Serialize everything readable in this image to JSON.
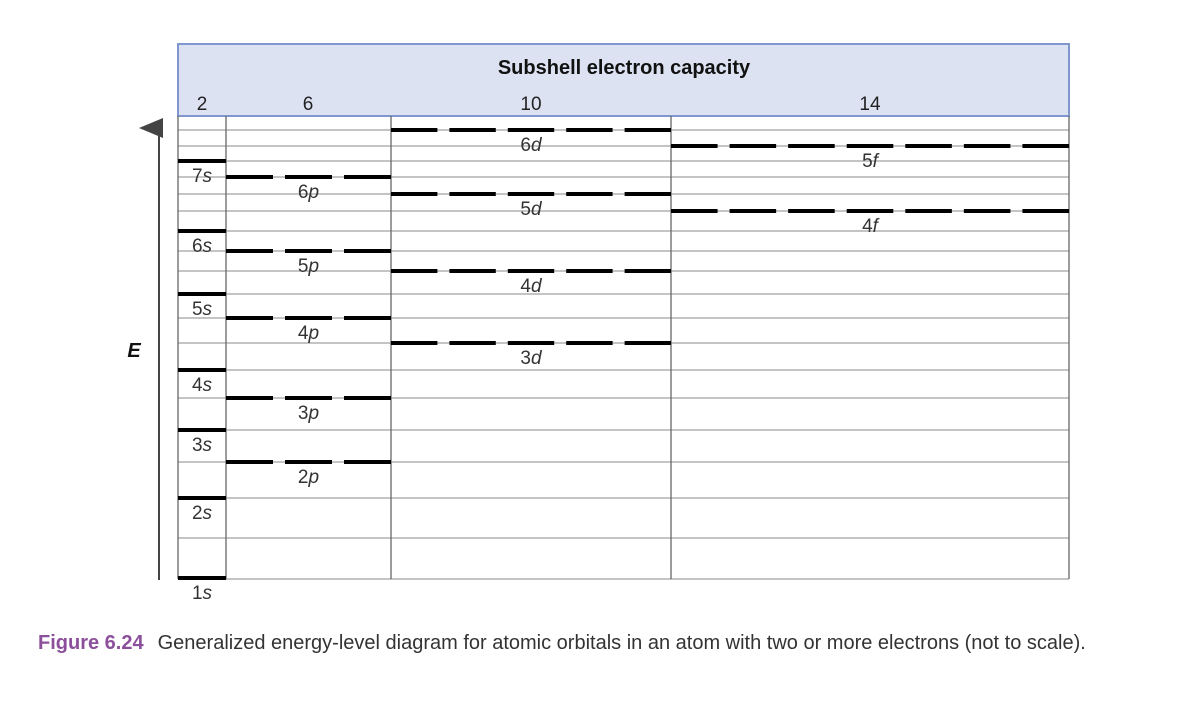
{
  "header": {
    "title": "Subshell electron capacity",
    "capacities": [
      "2",
      "6",
      "10",
      "14"
    ]
  },
  "axis": {
    "label": "E"
  },
  "levels": {
    "s": [
      {
        "n": "1",
        "l": "s"
      },
      {
        "n": "2",
        "l": "s"
      },
      {
        "n": "3",
        "l": "s"
      },
      {
        "n": "4",
        "l": "s"
      },
      {
        "n": "5",
        "l": "s"
      },
      {
        "n": "6",
        "l": "s"
      },
      {
        "n": "7",
        "l": "s"
      }
    ],
    "p": [
      {
        "n": "2",
        "l": "p"
      },
      {
        "n": "3",
        "l": "p"
      },
      {
        "n": "4",
        "l": "p"
      },
      {
        "n": "5",
        "l": "p"
      },
      {
        "n": "6",
        "l": "p"
      }
    ],
    "d": [
      {
        "n": "3",
        "l": "d"
      },
      {
        "n": "4",
        "l": "d"
      },
      {
        "n": "5",
        "l": "d"
      },
      {
        "n": "6",
        "l": "d"
      }
    ],
    "f": [
      {
        "n": "4",
        "l": "f"
      },
      {
        "n": "5",
        "l": "f"
      }
    ]
  },
  "caption": {
    "figure": "Figure 6.24",
    "text": "Generalized energy-level diagram for atomic orbitals in an atom with two or more electrons (not to scale)."
  },
  "colors": {
    "header_bg": "#dde2f3",
    "header_border": "#7f96cf",
    "grid": "#555555",
    "level": "#000000",
    "caption_figure": "#8c4f9b"
  }
}
